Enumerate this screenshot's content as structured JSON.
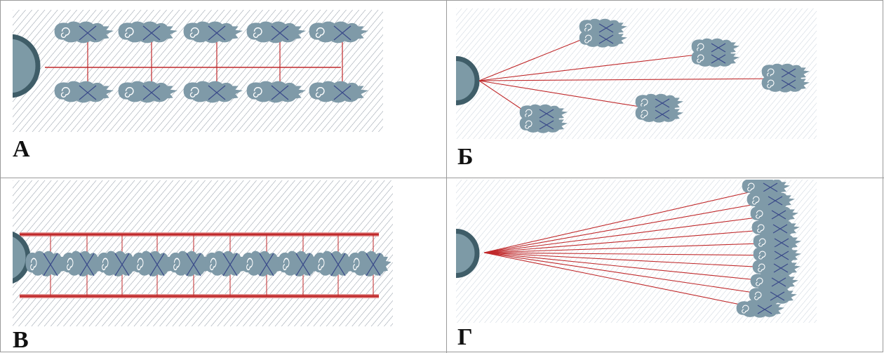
{
  "panels": [
    {
      "id": "A",
      "label": "А"
    },
    {
      "id": "B",
      "label": "Б"
    },
    {
      "id": "V",
      "label": "В"
    },
    {
      "id": "G",
      "label": "Г"
    }
  ],
  "colors": {
    "hatch_dark": "#8e98a4",
    "hatch_light": "#c9d2dc",
    "animal": "#7f9aa8",
    "dome": "#7d9aa6",
    "dome_rim": "#3f5d68",
    "line_red": "#c0292b",
    "cross_blue": "#3a4a8a"
  }
}
